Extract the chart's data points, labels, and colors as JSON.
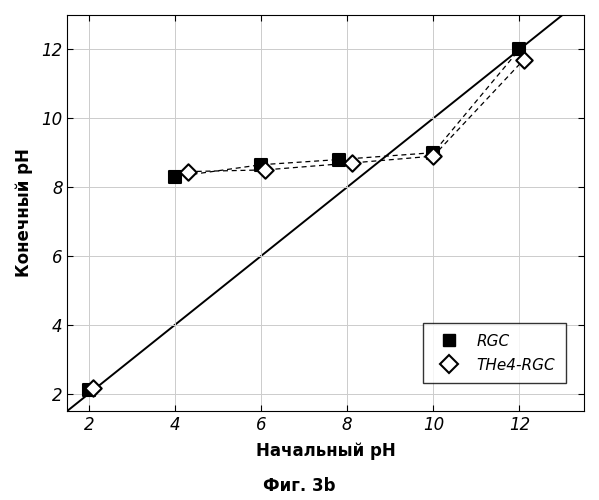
{
  "rgc_x": [
    2,
    4,
    6,
    7.8,
    10,
    12
  ],
  "rgc_y": [
    2.1,
    8.3,
    8.65,
    8.8,
    9.0,
    12.0
  ],
  "rgc_dashed_x": [
    4,
    6,
    7.8,
    10,
    12
  ],
  "rgc_dashed_y": [
    8.3,
    8.65,
    8.8,
    9.0,
    12.0
  ],
  "the4_x": [
    2.1,
    4.3,
    6.1,
    8.1,
    10.0,
    12.1
  ],
  "the4_y": [
    2.15,
    8.45,
    8.5,
    8.7,
    8.9,
    11.7
  ],
  "the4_dashed_x": [
    4.3,
    6.1,
    8.1,
    10.0,
    12.1
  ],
  "the4_dashed_y": [
    8.45,
    8.5,
    8.7,
    8.9,
    11.7
  ],
  "ref_line_x": [
    1.2,
    13.2
  ],
  "ref_line_y": [
    1.2,
    13.2
  ],
  "xlabel": "Начальный pH",
  "ylabel": "Конечный pH",
  "caption": "Фиг. 3b",
  "legend_rgc": "RGC",
  "legend_the4": "THe4-RGC",
  "xlim": [
    1.5,
    13.5
  ],
  "ylim": [
    1.5,
    13.0
  ],
  "xticks": [
    2,
    4,
    6,
    8,
    10,
    12
  ],
  "yticks": [
    2,
    4,
    6,
    8,
    10,
    12
  ]
}
